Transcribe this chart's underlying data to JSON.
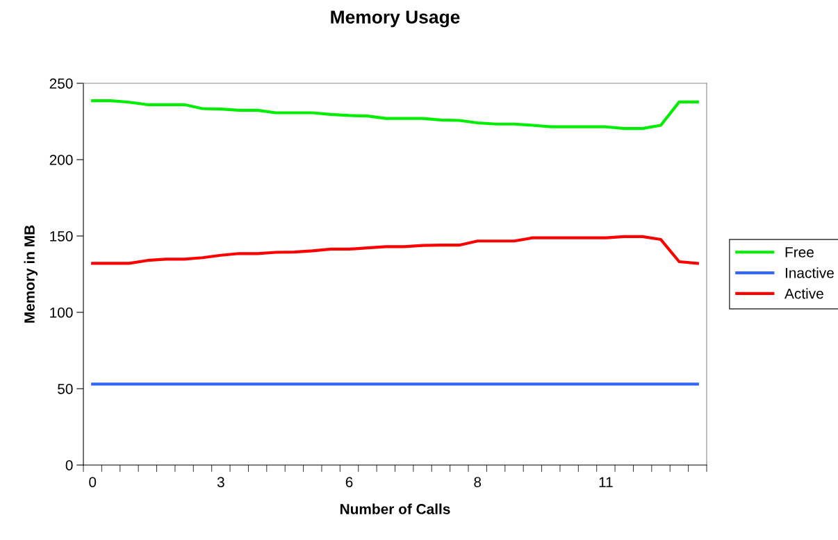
{
  "chart_data": {
    "type": "line",
    "title": "Memory Usage",
    "xlabel": "Number of Calls",
    "ylabel": "Memory in MB",
    "categories": [
      "0",
      null,
      null,
      null,
      null,
      null,
      null,
      "3",
      null,
      null,
      null,
      null,
      null,
      null,
      "6",
      null,
      null,
      null,
      null,
      null,
      null,
      "8",
      null,
      null,
      null,
      null,
      null,
      null,
      "11",
      null,
      null,
      null,
      null,
      null
    ],
    "series": [
      {
        "name": "Free",
        "color": "#00ee00",
        "values": [
          238.6,
          238.6,
          237.6,
          236,
          236,
          236,
          233.4,
          233.1,
          232.3,
          232.3,
          230.7,
          230.7,
          230.7,
          229.6,
          228.9,
          228.6,
          227,
          227,
          227,
          226,
          225.7,
          224.1,
          223.3,
          223.3,
          222.5,
          221.5,
          221.5,
          221.5,
          221.5,
          220.4,
          220.4,
          222.5,
          237.8,
          237.8
        ]
      },
      {
        "name": "Inactive",
        "color": "#3366ff",
        "values": [
          53,
          53,
          53,
          53,
          53,
          53,
          53,
          53,
          53,
          53,
          53,
          53,
          53,
          53,
          53,
          53,
          53,
          53,
          53,
          53,
          53,
          53,
          53,
          53,
          53,
          53,
          53,
          53,
          53,
          53,
          53,
          53,
          53,
          53
        ]
      },
      {
        "name": "Active",
        "color": "#ff0000",
        "values": [
          132.1,
          132.1,
          132.1,
          134,
          134.8,
          134.8,
          135.8,
          137.4,
          138.5,
          138.5,
          139.3,
          139.5,
          140.3,
          141.4,
          141.4,
          142.2,
          143,
          143,
          143.8,
          144,
          144,
          146.7,
          146.7,
          146.7,
          148.8,
          148.8,
          148.8,
          148.8,
          148.8,
          149.6,
          149.6,
          147.7,
          133.2,
          132.1
        ]
      }
    ],
    "ylim": [
      0,
      250
    ],
    "yticks": [
      0,
      50,
      100,
      150,
      200,
      250
    ],
    "grid": false,
    "legend": "right",
    "marker": "none",
    "line_style": "solid"
  }
}
